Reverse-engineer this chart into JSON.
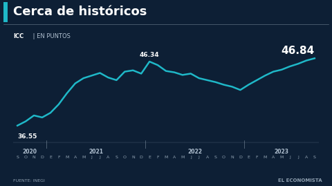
{
  "title": "Cerca de históricos",
  "subtitle_bold": "ICC",
  "subtitle_regular": " | EN PUNTOS",
  "bg_color": "#0d1f35",
  "line_color": "#1fb8c8",
  "text_color": "#ffffff",
  "source": "FUENTE: INEGI",
  "brand": "EL ECONOMISTA",
  "annotation_start": "36.55",
  "annotation_peak": "46.34",
  "annotation_end": "46.84",
  "years": [
    "2020",
    "2021",
    "2022",
    "2023"
  ],
  "month_labels": [
    "S",
    "O",
    "N",
    "D",
    "E",
    "F",
    "M",
    "A",
    "M",
    "J",
    "J",
    "A",
    "S",
    "O",
    "N",
    "D",
    "E",
    "F",
    "M",
    "A",
    "M",
    "J",
    "J",
    "A",
    "S",
    "O",
    "N",
    "D",
    "E",
    "F",
    "M",
    "A",
    "M",
    "J",
    "J",
    "A",
    "S"
  ],
  "values": [
    36.55,
    37.2,
    38.1,
    37.8,
    38.5,
    39.8,
    41.5,
    43.0,
    43.8,
    44.2,
    44.6,
    43.9,
    43.5,
    44.8,
    45.0,
    44.5,
    46.34,
    45.8,
    44.9,
    44.7,
    44.3,
    44.5,
    43.8,
    43.5,
    43.2,
    42.8,
    42.5,
    42.0,
    42.8,
    43.5,
    44.2,
    44.8,
    45.1,
    45.6,
    46.0,
    46.5,
    46.84
  ]
}
